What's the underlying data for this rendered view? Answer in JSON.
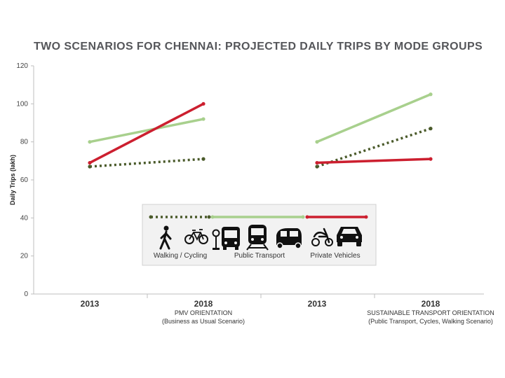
{
  "chart_data": {
    "type": "line",
    "title": "TWO SCENARIOS FOR CHENNAI: PROJECTED DAILY TRIPS BY MODE GROUPS",
    "ylabel": "Daily Trips (lakh)",
    "ylim": [
      0,
      120
    ],
    "yticks": [
      0,
      20,
      40,
      60,
      80,
      100,
      120
    ],
    "panels": [
      {
        "name": "PMV ORIENTATION",
        "subtitle": "(Business as Usual Scenario)",
        "x": [
          "2013",
          "2018"
        ],
        "series": [
          {
            "name": "Walking / Cycling",
            "values": [
              67,
              71
            ],
            "color": "#4a5a2a",
            "style": "dotted"
          },
          {
            "name": "Public Transport",
            "values": [
              80,
              92
            ],
            "color": "#a8d08d",
            "style": "solid"
          },
          {
            "name": "Private Vehicles",
            "values": [
              69,
              100
            ],
            "color": "#cc1f2f",
            "style": "solid"
          }
        ]
      },
      {
        "name": "SUSTAINABLE TRANSPORT ORIENTATION",
        "subtitle": "(Public Transport, Cycles, Walking Scenario)",
        "x": [
          "2013",
          "2018"
        ],
        "series": [
          {
            "name": "Walking / Cycling",
            "values": [
              67,
              87
            ],
            "color": "#4a5a2a",
            "style": "dotted"
          },
          {
            "name": "Public Transport",
            "values": [
              80,
              105
            ],
            "color": "#a8d08d",
            "style": "solid"
          },
          {
            "name": "Private Vehicles",
            "values": [
              69,
              71
            ],
            "color": "#cc1f2f",
            "style": "solid"
          }
        ]
      }
    ],
    "legend": [
      {
        "label": "Walking / Cycling",
        "color": "#4a5a2a",
        "style": "dotted",
        "icons": [
          "pedestrian-icon",
          "bicycle-icon"
        ]
      },
      {
        "label": "Public Transport",
        "color": "#a8d08d",
        "style": "solid",
        "icons": [
          "bus-stop-icon",
          "bus-icon",
          "train-icon",
          "auto-rickshaw-icon"
        ]
      },
      {
        "label": "Private Vehicles",
        "color": "#cc1f2f",
        "style": "solid",
        "icons": [
          "scooter-icon",
          "car-icon"
        ]
      }
    ]
  }
}
